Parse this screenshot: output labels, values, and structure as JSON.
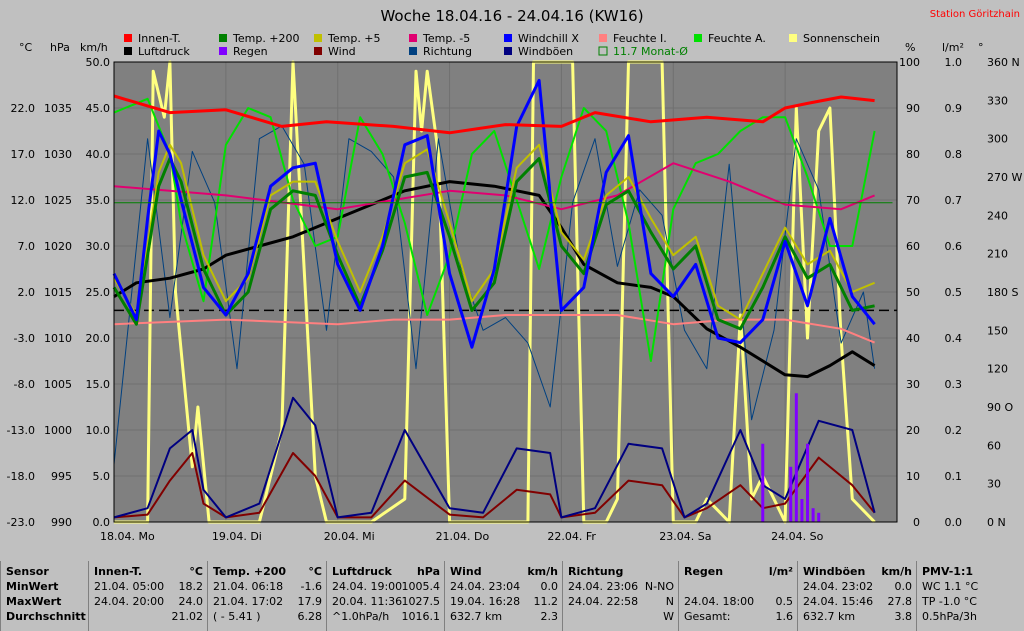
{
  "title": "Woche 18.04.16 - 24.04.16 (KW16)",
  "station": "Station Göritzhain",
  "legend": [
    {
      "label": "Innen-T.",
      "color": "#ff0000"
    },
    {
      "label": "Temp. +200",
      "color": "#008000"
    },
    {
      "label": "Temp. +5",
      "color": "#c0c000"
    },
    {
      "label": "Temp. -5",
      "color": "#e00070"
    },
    {
      "label": "Windchill X",
      "color": "#0000ff"
    },
    {
      "label": "Feuchte I.",
      "color": "#ff8080"
    },
    {
      "label": "Feuchte A.",
      "color": "#00e000"
    },
    {
      "label": "Sonnenschein",
      "color": "#ffff80"
    },
    {
      "label": "Luftdruck",
      "color": "#000000"
    },
    {
      "label": "Regen",
      "color": "#8000ff"
    },
    {
      "label": "Wind",
      "color": "#800000"
    },
    {
      "label": "Richtung",
      "color": "#004080"
    },
    {
      "label": "Windböen",
      "color": "#000080"
    },
    {
      "label": "11.7 Monat-Ø",
      "color": "#008000",
      "outline": true
    }
  ],
  "axis_units": {
    "temp": "°C",
    "press": "hPa",
    "wind": "km/h",
    "hum": "%",
    "rain": "l/m²",
    "dir": "°"
  },
  "chart_data": {
    "type": "line",
    "x": [
      "18.04. Mo",
      "19.04. Di",
      "20.04. Mi",
      "21.04. Do",
      "22.04. Fr",
      "23.04. Sa",
      "24.04. So"
    ],
    "axes": {
      "temp": {
        "ticks": [
          22.0,
          17.0,
          12.0,
          7.0,
          2.0,
          -3.0,
          -8.0,
          -13.0,
          -18.0,
          -23.0
        ],
        "range": [
          -23,
          27
        ]
      },
      "press": {
        "ticks": [
          1035,
          1030,
          1025,
          1020,
          1015,
          1010,
          1005,
          1000,
          995,
          990
        ],
        "range": [
          990,
          1040
        ]
      },
      "wind": {
        "ticks": [
          50.0,
          45.0,
          40.0,
          35.0,
          30.0,
          25.0,
          20.0,
          15.0,
          10.0,
          5.0,
          0.0
        ],
        "range": [
          0,
          50
        ]
      },
      "hum": {
        "ticks": [
          100,
          90,
          80,
          70,
          60,
          50,
          40,
          30,
          20,
          10,
          0
        ],
        "range": [
          0,
          100
        ]
      },
      "rain": {
        "ticks": [
          1.0,
          0.9,
          0.8,
          0.7,
          0.6,
          0.5,
          0.4,
          0.3,
          0.2,
          0.1,
          0.0
        ],
        "range": [
          0,
          1
        ]
      },
      "dir": {
        "ticks": [
          "360 N",
          "330",
          "300",
          "270 W",
          "240",
          "210",
          "180 S",
          "150",
          "120",
          "90 O",
          "60",
          "30",
          "0 N"
        ],
        "range": [
          0,
          360
        ]
      }
    },
    "series": [
      {
        "name": "Innen-T.",
        "axis": "temp",
        "color": "#ff0000",
        "width": 3,
        "x": [
          0,
          0.5,
          1,
          1.5,
          1.9,
          2.5,
          3,
          3.5,
          4,
          4.3,
          4.8,
          5.3,
          5.8,
          6.0,
          6.2,
          6.5,
          6.8
        ],
        "y": [
          23.3,
          21.5,
          21.8,
          20.0,
          20.5,
          20.0,
          19.3,
          20.2,
          20.0,
          21.5,
          20.5,
          21.0,
          20.5,
          22.0,
          22.5,
          23.2,
          22.8
        ]
      },
      {
        "name": "Temp. +200",
        "axis": "temp",
        "color": "#008000",
        "width": 3,
        "x": [
          0,
          0.2,
          0.3,
          0.4,
          0.5,
          0.6,
          0.8,
          1.0,
          1.2,
          1.4,
          1.6,
          1.8,
          2.0,
          2.2,
          2.4,
          2.6,
          2.8,
          3.0,
          3.2,
          3.4,
          3.6,
          3.8,
          4.0,
          4.2,
          4.4,
          4.6,
          4.8,
          5.0,
          5.2,
          5.4,
          5.6,
          5.8,
          6.0,
          6.2,
          6.4,
          6.6,
          6.8
        ],
        "y": [
          2.5,
          -1.5,
          6.0,
          13.5,
          16.5,
          14.0,
          4.5,
          -0.5,
          2.0,
          11.0,
          13.0,
          12.5,
          6.0,
          0.5,
          6.5,
          14.5,
          15.0,
          8.0,
          0.0,
          3.0,
          14.0,
          16.5,
          7.0,
          4.0,
          11.5,
          13.0,
          8.5,
          4.5,
          7.0,
          -1.0,
          -2.0,
          2.5,
          8.0,
          3.5,
          5.0,
          0.0,
          0.5
        ]
      },
      {
        "name": "Temp. +5",
        "axis": "temp",
        "color": "#c0c000",
        "width": 2,
        "x": [
          0,
          0.2,
          0.3,
          0.4,
          0.5,
          0.6,
          0.8,
          1.0,
          1.2,
          1.4,
          1.6,
          1.8,
          2.0,
          2.2,
          2.4,
          2.6,
          2.8,
          3.0,
          3.2,
          3.4,
          3.6,
          3.8,
          4.0,
          4.2,
          4.4,
          4.6,
          4.8,
          5.0,
          5.2,
          5.4,
          5.6,
          5.8,
          6.0,
          6.2,
          6.4,
          6.6,
          6.8
        ],
        "y": [
          3.5,
          -0.5,
          7.0,
          15.0,
          18.0,
          16.0,
          6.0,
          1.0,
          3.5,
          12.5,
          14.0,
          14.0,
          7.5,
          2.0,
          8.0,
          16.0,
          17.5,
          9.5,
          1.0,
          4.5,
          15.5,
          18.0,
          8.5,
          5.5,
          12.5,
          14.5,
          10.0,
          6.0,
          8.0,
          0.5,
          -1.0,
          4.0,
          9.0,
          5.0,
          6.5,
          2.0,
          3.0
        ]
      },
      {
        "name": "Temp. -5",
        "axis": "temp",
        "color": "#e00070",
        "width": 2,
        "x": [
          0,
          1,
          2,
          2.5,
          3,
          3.5,
          4,
          4.5,
          5,
          5.5,
          6,
          6.5,
          6.8
        ],
        "y": [
          13.5,
          12.5,
          11.0,
          12.0,
          13.0,
          12.5,
          11.0,
          12.5,
          16.0,
          14.0,
          11.5,
          11.0,
          12.5
        ]
      },
      {
        "name": "Windchill X",
        "axis": "temp",
        "color": "#0000ff",
        "width": 3,
        "x": [
          0,
          0.2,
          0.3,
          0.4,
          0.5,
          0.6,
          0.8,
          1.0,
          1.2,
          1.4,
          1.6,
          1.8,
          2.0,
          2.2,
          2.4,
          2.6,
          2.8,
          3.0,
          3.2,
          3.4,
          3.6,
          3.8,
          4.0,
          4.2,
          4.4,
          4.6,
          4.8,
          5.0,
          5.2,
          5.4,
          5.6,
          5.8,
          6.0,
          6.2,
          6.4,
          6.6,
          6.8
        ],
        "y": [
          4.0,
          -1.0,
          10.0,
          19.5,
          17.0,
          12.0,
          2.5,
          -0.5,
          4.0,
          13.5,
          15.5,
          16.0,
          5.0,
          0.0,
          7.0,
          18.0,
          19.0,
          4.0,
          -4.0,
          4.5,
          20.0,
          25.0,
          0.0,
          2.5,
          15.0,
          19.0,
          4.0,
          1.5,
          5.0,
          -3.0,
          -3.5,
          -1.0,
          7.5,
          0.5,
          10.0,
          1.5,
          -1.5
        ]
      },
      {
        "name": "Feuchte I.",
        "axis": "hum",
        "color": "#ff8080",
        "width": 2,
        "x": [
          0,
          1,
          2,
          2.5,
          3,
          3.5,
          4,
          4.5,
          5,
          5.5,
          6,
          6.5,
          6.8
        ],
        "y": [
          43,
          44,
          43,
          44,
          44,
          45,
          45,
          45,
          43,
          44,
          44,
          42,
          39
        ]
      },
      {
        "name": "Feuchte A.",
        "axis": "hum",
        "color": "#00e000",
        "width": 2,
        "x": [
          0,
          0.3,
          0.5,
          0.6,
          0.8,
          1.0,
          1.2,
          1.4,
          1.6,
          1.8,
          2.0,
          2.2,
          2.4,
          2.6,
          2.8,
          3.0,
          3.2,
          3.4,
          3.6,
          3.8,
          4.0,
          4.2,
          4.4,
          4.6,
          4.8,
          5.0,
          5.2,
          5.4,
          5.6,
          5.8,
          6.0,
          6.2,
          6.4,
          6.6,
          6.8
        ],
        "y": [
          89,
          92,
          80,
          65,
          48,
          82,
          90,
          88,
          70,
          60,
          62,
          88,
          80,
          65,
          45,
          58,
          80,
          85,
          70,
          55,
          75,
          90,
          85,
          65,
          35,
          68,
          78,
          80,
          85,
          88,
          88,
          75,
          60,
          60,
          85
        ]
      },
      {
        "name": "Luftdruck",
        "axis": "press",
        "color": "#000000",
        "width": 3,
        "x": [
          0,
          0.2,
          0.5,
          0.8,
          1.0,
          1.3,
          1.6,
          2.0,
          2.3,
          2.6,
          3.0,
          3.4,
          3.8,
          4.0,
          4.2,
          4.5,
          4.8,
          5.0,
          5.3,
          5.6,
          5.8,
          6.0,
          6.2,
          6.4,
          6.6,
          6.8
        ],
        "y": [
          1014.5,
          1016.0,
          1016.5,
          1017.5,
          1019.0,
          1020.0,
          1021.0,
          1023.0,
          1024.5,
          1026.0,
          1027.0,
          1026.5,
          1025.5,
          1022.0,
          1018.0,
          1016.0,
          1015.5,
          1014.5,
          1011.0,
          1009.0,
          1007.5,
          1006.0,
          1005.8,
          1007.0,
          1008.5,
          1007.0
        ]
      },
      {
        "name": "Wind",
        "axis": "wind",
        "color": "#800000",
        "width": 2,
        "x": [
          0,
          0.3,
          0.5,
          0.7,
          0.8,
          1.0,
          1.3,
          1.6,
          1.8,
          2.0,
          2.3,
          2.6,
          3.0,
          3.3,
          3.6,
          3.9,
          4.0,
          4.3,
          4.6,
          4.9,
          5.1,
          5.3,
          5.6,
          5.8,
          6.0,
          6.3,
          6.6,
          6.8
        ],
        "y": [
          0.5,
          0.8,
          4.5,
          7.5,
          2.0,
          0.5,
          1.0,
          7.5,
          5.0,
          0.5,
          0.5,
          4.5,
          0.8,
          0.5,
          3.5,
          3.0,
          0.5,
          1.0,
          4.5,
          4.0,
          0.5,
          1.5,
          4.0,
          1.5,
          2.0,
          7.0,
          4.0,
          1.0
        ]
      },
      {
        "name": "Windböen",
        "axis": "wind",
        "color": "#000080",
        "width": 2,
        "x": [
          0,
          0.3,
          0.5,
          0.7,
          0.8,
          1.0,
          1.3,
          1.6,
          1.8,
          2.0,
          2.3,
          2.6,
          3.0,
          3.3,
          3.6,
          3.9,
          4.0,
          4.3,
          4.6,
          4.9,
          5.1,
          5.3,
          5.6,
          5.8,
          6.0,
          6.3,
          6.6,
          6.8
        ],
        "y": [
          0.5,
          1.5,
          8.0,
          10.0,
          3.5,
          0.5,
          2.0,
          13.5,
          10.5,
          0.5,
          1.0,
          10.0,
          1.5,
          1.0,
          8.0,
          7.5,
          0.5,
          1.5,
          8.5,
          8.0,
          0.5,
          2.0,
          10.0,
          4.0,
          2.5,
          11.0,
          10.0,
          1.0
        ]
      },
      {
        "name": "Sonnenschein",
        "axis": "hum",
        "color": "#ffff80",
        "width": 3,
        "x": [
          0,
          0.3,
          0.35,
          0.45,
          0.5,
          0.55,
          0.7,
          0.75,
          0.85,
          0.9,
          1.0,
          1.3,
          1.5,
          1.6,
          1.8,
          1.9,
          2.0,
          2.3,
          2.6,
          2.7,
          2.75,
          2.8,
          2.9,
          3.0,
          3.4,
          3.7,
          3.75,
          4.1,
          4.2,
          4.4,
          4.5,
          4.6,
          4.9,
          5.0,
          5.2,
          5.3,
          5.5,
          5.6,
          5.7,
          5.8,
          6.0,
          6.1,
          6.2,
          6.3,
          6.4,
          6.5,
          6.6,
          6.8
        ],
        "y": [
          0,
          0,
          98,
          88,
          100,
          50,
          12,
          25,
          0,
          0,
          0,
          0,
          20,
          100,
          10,
          0,
          0,
          0,
          5,
          98,
          85,
          98,
          80,
          0,
          0,
          0,
          100,
          100,
          0,
          0,
          5,
          100,
          100,
          0,
          0,
          5,
          0,
          45,
          5,
          10,
          0,
          90,
          40,
          85,
          90,
          40,
          5,
          0
        ]
      },
      {
        "name": "Richtung",
        "axis": "dir",
        "color": "#004080",
        "width": 1,
        "x": [
          0,
          0.3,
          0.5,
          0.7,
          0.9,
          1.1,
          1.3,
          1.5,
          1.7,
          1.9,
          2.1,
          2.3,
          2.5,
          2.7,
          2.9,
          3.1,
          3.3,
          3.5,
          3.7,
          3.9,
          4.1,
          4.3,
          4.5,
          4.7,
          4.9,
          5.1,
          5.3,
          5.5,
          5.7,
          5.9,
          6.1,
          6.3,
          6.5,
          6.7,
          6.8
        ],
        "y": [
          45,
          300,
          160,
          290,
          250,
          120,
          300,
          310,
          280,
          150,
          300,
          290,
          270,
          120,
          300,
          200,
          150,
          160,
          140,
          90,
          250,
          300,
          200,
          260,
          240,
          150,
          120,
          280,
          80,
          150,
          300,
          260,
          140,
          180,
          120
        ]
      },
      {
        "name": "Regen",
        "axis": "rain",
        "color": "#8000ff",
        "width": 3,
        "x": [
          5.75,
          5.8,
          6.0,
          6.05,
          6.1,
          6.15,
          6.2,
          6.25,
          6.3
        ],
        "y": [
          0.0,
          0.17,
          0.0,
          0.12,
          0.28,
          0.05,
          0.17,
          0.03,
          0.02
        ]
      },
      {
        "name": "11.7 Monat-Ø",
        "axis": "temp",
        "color": "#008000",
        "width": 1,
        "x": [
          0,
          6.96
        ],
        "y": [
          11.7,
          11.7
        ]
      }
    ]
  },
  "stats": {
    "columns": [
      {
        "title": "Sensor",
        "rows": [
          "MinWert",
          "MaxWert",
          "Durchschnitt"
        ]
      },
      {
        "title": "Innen-T.",
        "unit": "°C",
        "rows": [
          [
            "21.04.  05:00",
            "18.2"
          ],
          [
            "24.04.  20:00",
            "24.0"
          ],
          [
            "",
            "21.02"
          ]
        ]
      },
      {
        "title": "Temp. +200",
        "unit": "°C",
        "rows": [
          [
            "21.04.  06:18",
            "-1.6"
          ],
          [
            "21.04.  17:02",
            "17.9"
          ],
          [
            "( - 5.41 )",
            "6.28"
          ]
        ]
      },
      {
        "title": "Luftdruck",
        "unit": "hPa",
        "rows": [
          [
            "24.04.  19:00",
            "1005.4"
          ],
          [
            "20.04.  11:36",
            "1027.5"
          ],
          [
            "^1.0hPa/h",
            "1016.1"
          ]
        ]
      },
      {
        "title": "Wind",
        "unit": "km/h",
        "rows": [
          [
            "24.04.  23:04",
            "0.0"
          ],
          [
            "19.04.  16:28",
            "11.2"
          ],
          [
            "632.7 km",
            "2.3"
          ]
        ]
      },
      {
        "title": "Richtung",
        "unit": "",
        "rows": [
          [
            "24.04.  23:06",
            "N-NO"
          ],
          [
            "24.04.  22:58",
            "N"
          ],
          [
            "",
            "W"
          ]
        ]
      },
      {
        "title": "Regen",
        "unit": "l/m²",
        "rows": [
          [
            "",
            ""
          ],
          [
            "24.04.  18:00",
            "0.5"
          ],
          [
            "Gesamt:",
            "1.6"
          ]
        ]
      },
      {
        "title": "Windböen",
        "unit": "km/h",
        "rows": [
          [
            "24.04.  23:02",
            "0.0"
          ],
          [
            "24.04.  15:46",
            "27.8"
          ],
          [
            "632.7 km",
            "3.8"
          ]
        ]
      },
      {
        "title": "PMV-1:1",
        "unit": "",
        "rows": [
          [
            "WC 1.1 °C",
            ""
          ],
          [
            "TP -1.0 °C",
            ""
          ],
          [
            "0.5hPa/3h",
            ""
          ]
        ]
      }
    ]
  }
}
